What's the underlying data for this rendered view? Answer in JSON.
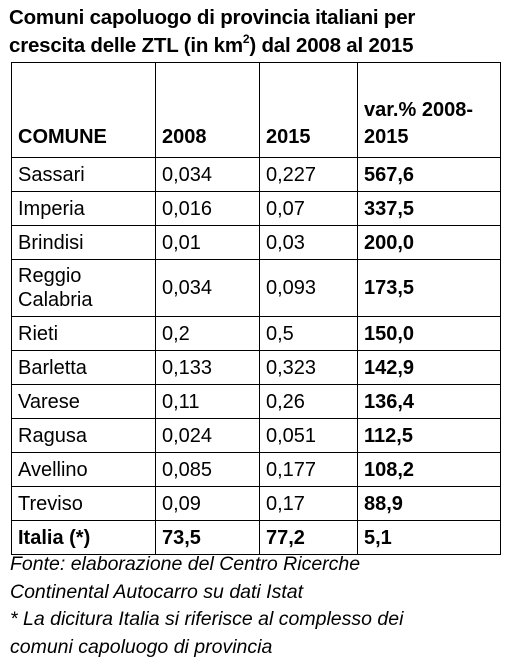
{
  "title": {
    "line1": "Comuni capoluogo di provincia italiani per",
    "line2_prefix": "crescita delle ZTL (in km",
    "line2_sup": "2",
    "line2_suffix": ") dal 2008 al 2015"
  },
  "chart_data": {
    "type": "table",
    "columns": [
      "COMUNE",
      "2008",
      "2015",
      "var.% 2008-2015"
    ],
    "header_var_line1": "var.% 2008-",
    "header_var_line2": "2015",
    "rows": [
      {
        "comune": [
          "Sassari"
        ],
        "v2008": "0,034",
        "v2015": "0,227",
        "var": "567,6"
      },
      {
        "comune": [
          "Imperia"
        ],
        "v2008": "0,016",
        "v2015": "0,07",
        "var": "337,5"
      },
      {
        "comune": [
          "Brindisi"
        ],
        "v2008": "0,01",
        "v2015": "0,03",
        "var": "200,0"
      },
      {
        "comune": [
          "Reggio",
          "Calabria"
        ],
        "v2008": "0,034",
        "v2015": "0,093",
        "var": "173,5"
      },
      {
        "comune": [
          "Rieti"
        ],
        "v2008": "0,2",
        "v2015": "0,5",
        "var": "150,0"
      },
      {
        "comune": [
          "Barletta"
        ],
        "v2008": "0,133",
        "v2015": "0,323",
        "var": "142,9"
      },
      {
        "comune": [
          "Varese"
        ],
        "v2008": "0,11",
        "v2015": "0,26",
        "var": "136,4"
      },
      {
        "comune": [
          "Ragusa"
        ],
        "v2008": "0,024",
        "v2015": "0,051",
        "var": "112,5"
      },
      {
        "comune": [
          "Avellino"
        ],
        "v2008": "0,085",
        "v2015": "0,177",
        "var": "108,2"
      },
      {
        "comune": [
          "Treviso"
        ],
        "v2008": "0,09",
        "v2015": "0,17",
        "var": "88,9"
      }
    ],
    "total": {
      "comune": "Italia (*)",
      "v2008": "73,5",
      "v2015": "77,2",
      "var": "5,1"
    }
  },
  "footnote": {
    "lines": [
      "Fonte: elaborazione del Centro Ricerche",
      "Continental Autocarro su dati Istat",
      "* La dicitura Italia si riferisce al complesso dei",
      "comuni capoluogo di provincia"
    ]
  }
}
